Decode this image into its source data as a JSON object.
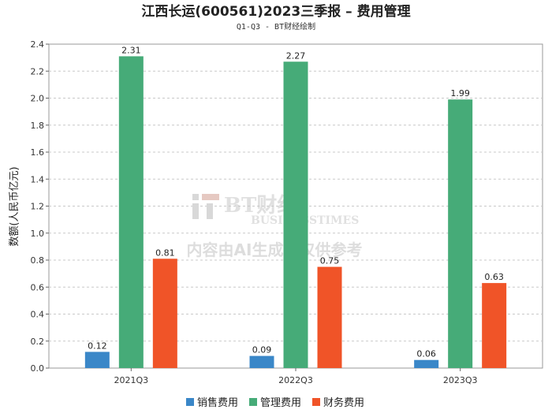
{
  "chart_data": {
    "type": "bar",
    "title": "江西长运(600561)2023三季报 – 费用管理",
    "subtitle": "Q1-Q3 - BT财经绘制",
    "ylabel": "数额(人民币亿元)",
    "xlabel": "",
    "categories": [
      "2021Q3",
      "2022Q3",
      "2023Q3"
    ],
    "ylim": [
      0,
      2.4
    ],
    "yticks": [
      "0.0",
      "0.2",
      "0.4",
      "0.6",
      "0.8",
      "1.0",
      "1.2",
      "1.4",
      "1.6",
      "1.8",
      "2.0",
      "2.2",
      "2.4"
    ],
    "grid": true,
    "legend_position": "bottom",
    "series": [
      {
        "name": "销售费用",
        "color": "#3a87c8",
        "values": [
          0.12,
          0.09,
          0.06
        ],
        "labels": [
          "0.12",
          "0.09",
          "0.06"
        ]
      },
      {
        "name": "管理费用",
        "color": "#46ab78",
        "values": [
          2.31,
          2.27,
          1.99
        ],
        "labels": [
          "2.31",
          "2.27",
          "1.99"
        ]
      },
      {
        "name": "财务费用",
        "color": "#f05428",
        "values": [
          0.81,
          0.75,
          0.63
        ],
        "labels": [
          "0.81",
          "0.75",
          "0.63"
        ]
      }
    ]
  },
  "watermark": {
    "logo_text": "BT财经",
    "logo_subtext": "BUSINESSTIMES",
    "notice": "内容由AI生成，仅供参考"
  }
}
